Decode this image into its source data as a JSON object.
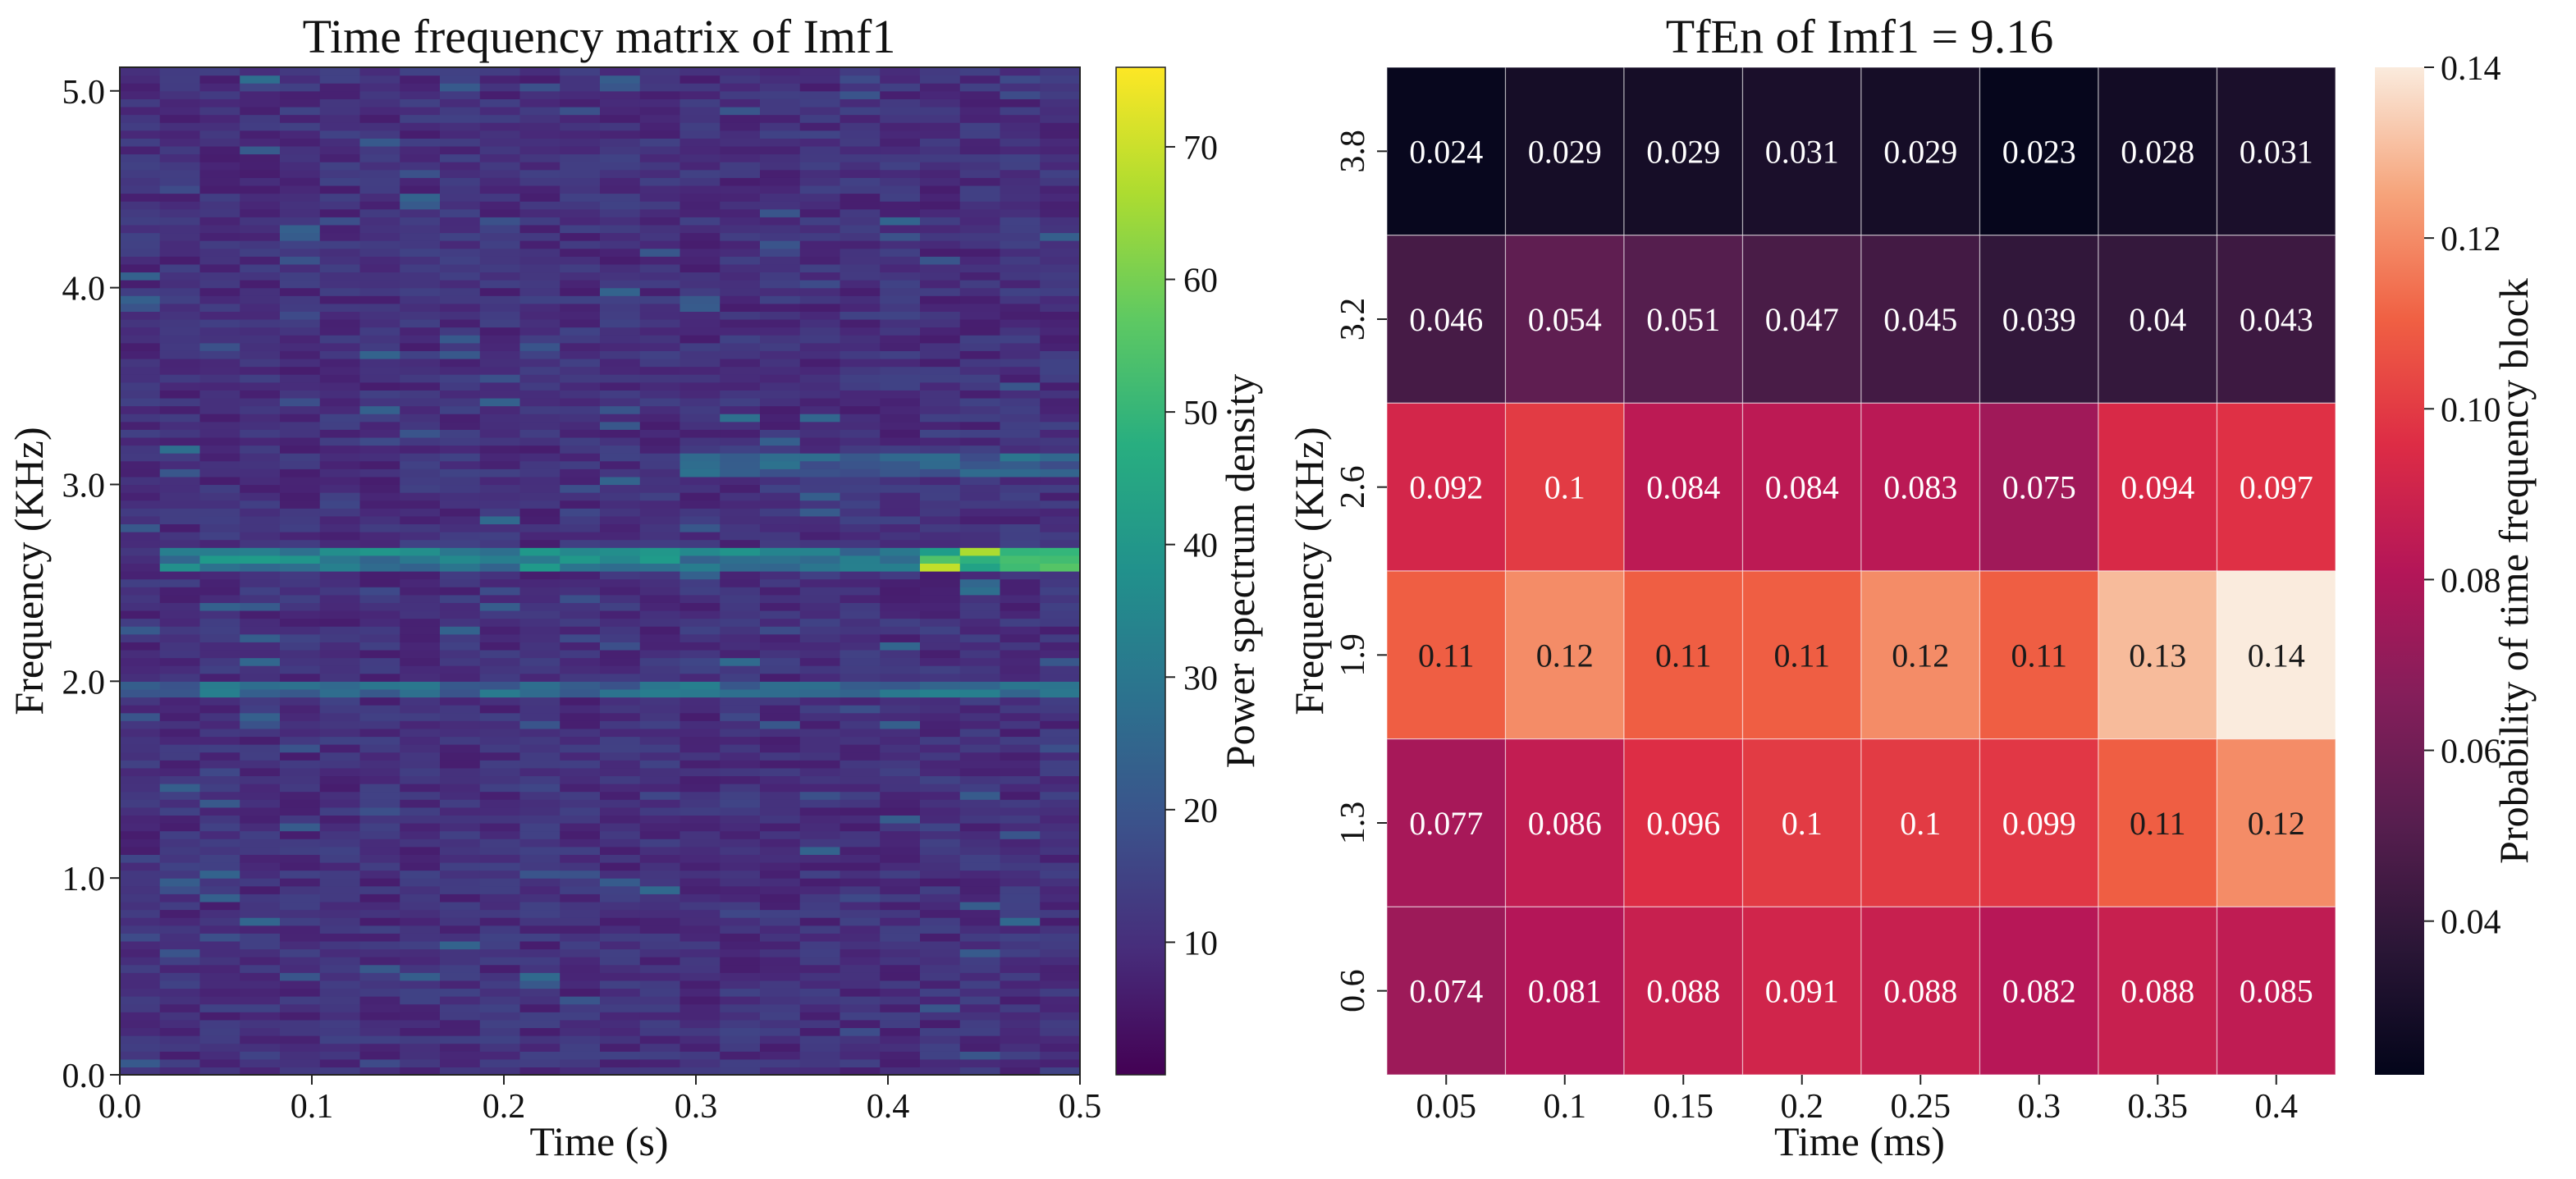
{
  "chart_data": [
    {
      "type": "heatmap",
      "title": "Time frequency matrix of Imf1",
      "xlabel": "Time (s)",
      "ylabel": "Frequency (KHz)",
      "xlim": [
        0.0,
        0.5
      ],
      "ylim": [
        0.0,
        5.12
      ],
      "x_ticks": [
        0.0,
        0.1,
        0.2,
        0.3,
        0.4,
        0.5
      ],
      "x_tick_labels": [
        "0.0",
        "0.1",
        "0.2",
        "0.3",
        "0.4",
        "0.5"
      ],
      "y_ticks": [
        0.0,
        1.0,
        2.0,
        3.0,
        4.0,
        5.0
      ],
      "y_tick_labels": [
        "0.0",
        "1.0",
        "2.0",
        "3.0",
        "4.0",
        "5.0"
      ],
      "colormap": "viridis",
      "colorbar": {
        "label": "Power spectrum density",
        "range": [
          0,
          76
        ],
        "ticks": [
          10,
          20,
          30,
          40,
          50,
          60,
          70
        ],
        "tick_labels": [
          "10",
          "20",
          "30",
          "40",
          "50",
          "60",
          "70"
        ]
      },
      "time_bins": 24,
      "freq_bins": 128,
      "background_level": 6,
      "features": [
        {
          "time_from": 0.02,
          "time_to": 0.5,
          "freq": 2.62,
          "level": 42
        },
        {
          "time_from": 0.423,
          "time_to": 0.5,
          "freq": 2.62,
          "level": 74
        },
        {
          "time_from": 0.0,
          "time_to": 0.02,
          "freq": 3.93,
          "level": 28
        },
        {
          "time_from": 0.0,
          "time_to": 0.5,
          "freq": 1.95,
          "level": 34
        },
        {
          "time_from": 0.3,
          "time_to": 0.5,
          "freq": 3.1,
          "level": 30
        }
      ]
    },
    {
      "type": "heatmap",
      "title": "TfEn of Imf1 = 9.16",
      "xlabel": "Time (ms)",
      "ylabel": "Frequency (KHz)",
      "x_categories": [
        "0.05",
        "0.1",
        "0.15",
        "0.2",
        "0.25",
        "0.3",
        "0.35",
        "0.4"
      ],
      "y_categories": [
        "3.8",
        "3.2",
        "2.6",
        "1.9",
        "1.3",
        "0.6"
      ],
      "values": [
        [
          0.024,
          0.029,
          0.029,
          0.031,
          0.029,
          0.023,
          0.028,
          0.031
        ],
        [
          0.046,
          0.054,
          0.051,
          0.047,
          0.045,
          0.039,
          0.04,
          0.043
        ],
        [
          0.092,
          0.1,
          0.084,
          0.084,
          0.083,
          0.075,
          0.094,
          0.097
        ],
        [
          0.11,
          0.12,
          0.11,
          0.11,
          0.12,
          0.11,
          0.13,
          0.14
        ],
        [
          0.077,
          0.086,
          0.096,
          0.1,
          0.1,
          0.099,
          0.11,
          0.12
        ],
        [
          0.074,
          0.081,
          0.088,
          0.091,
          0.088,
          0.082,
          0.088,
          0.085
        ]
      ],
      "colormap": "rocket",
      "colorbar": {
        "label": "Probability of time frequency block",
        "range": [
          0.022,
          0.14
        ],
        "ticks": [
          0.04,
          0.06,
          0.08,
          0.1,
          0.12,
          0.14
        ],
        "tick_labels": [
          "0.04",
          "0.06",
          "0.08",
          "0.10",
          "0.12",
          "0.14"
        ]
      }
    }
  ]
}
